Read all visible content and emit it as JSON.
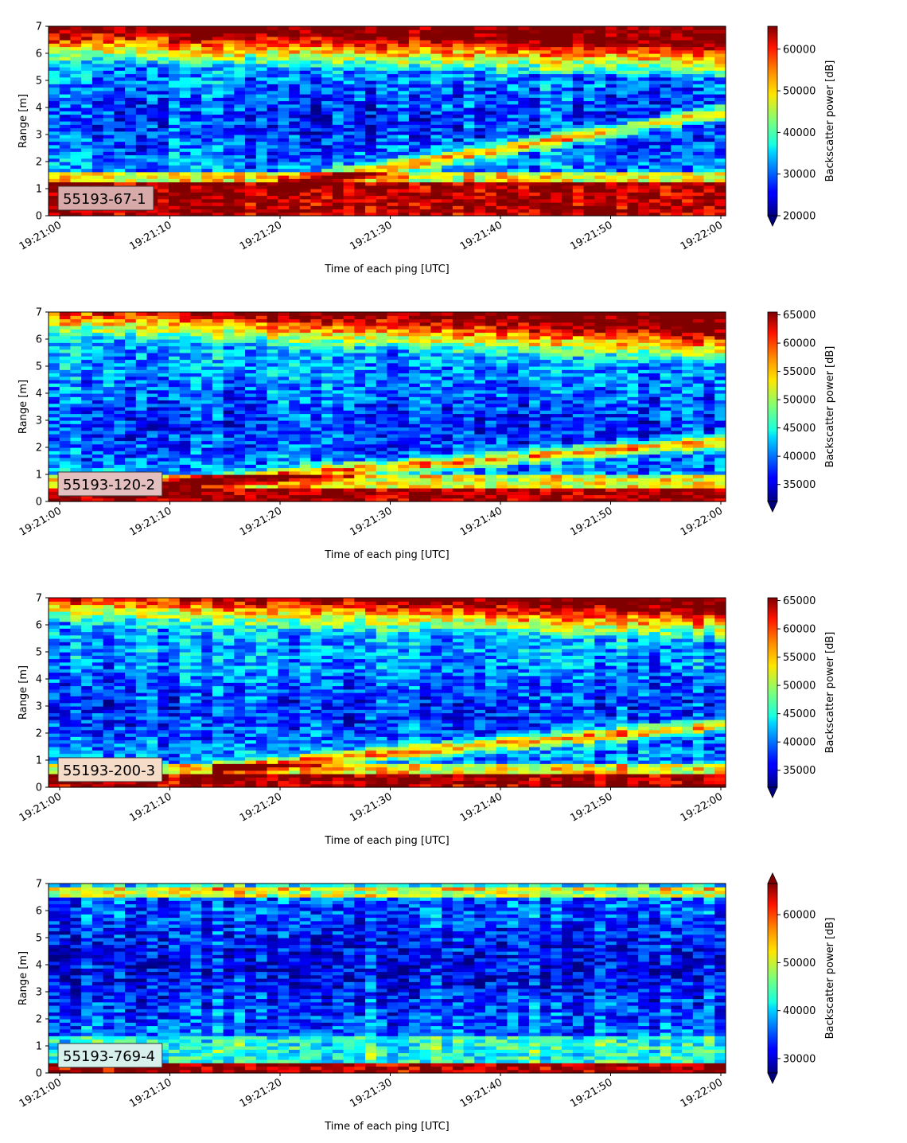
{
  "chart_data": [
    {
      "type": "heatmap",
      "label": "55193-67-1",
      "label_box_color": "#d8a9a9",
      "xlabel": "Time of each ping [UTC]",
      "ylabel": "Range [m]",
      "x_ticks": [
        "19:21:00",
        "19:21:10",
        "19:21:20",
        "19:21:30",
        "19:21:40",
        "19:21:50",
        "19:22:00"
      ],
      "y_ticks": [
        "0",
        "1",
        "2",
        "3",
        "4",
        "5",
        "6",
        "7"
      ],
      "ylim": [
        0,
        7
      ],
      "xlim": [
        "19:21:00",
        "19:22:00"
      ],
      "colorbar": {
        "label": "Backscatter power [dB]",
        "ticks": [
          "20000",
          "30000",
          "40000",
          "50000",
          "60000"
        ],
        "range": [
          20000,
          65500
        ],
        "extend": "min",
        "colormap": "jet"
      },
      "features": {
        "bottom_band_top_m": 1.2,
        "diagonal_echo_start_m": 1.1,
        "diagonal_echo_end_m": 3.8,
        "diagonal_start_s": 20,
        "low_region_center_m": 3.5,
        "surface_band_start_m": 5.6,
        "surface_band_end_m": 5.0
      }
    },
    {
      "type": "heatmap",
      "label": "55193-120-2",
      "label_box_color": "#e3bfbf",
      "xlabel": "Time of each ping [UTC]",
      "ylabel": "Range [m]",
      "x_ticks": [
        "19:21:00",
        "19:21:10",
        "19:21:20",
        "19:21:30",
        "19:21:40",
        "19:21:50",
        "19:22:00"
      ],
      "y_ticks": [
        "0",
        "1",
        "2",
        "3",
        "4",
        "5",
        "6",
        "7"
      ],
      "ylim": [
        0,
        7
      ],
      "xlim": [
        "19:21:00",
        "19:22:00"
      ],
      "colorbar": {
        "label": "Backscatter power [dB]",
        "ticks": [
          "35000",
          "40000",
          "45000",
          "50000",
          "55000",
          "60000",
          "65000"
        ],
        "range": [
          32000,
          65500
        ],
        "extend": "min",
        "colormap": "jet"
      },
      "features": {
        "bottom_band_top_m": 0.5,
        "diagonal_echo_start_m": 0.6,
        "diagonal_echo_end_m": 2.2,
        "diagonal_start_s": 8,
        "low_region_center_m": 2.8,
        "surface_band_start_m": 6.0,
        "surface_band_end_m": 5.0
      }
    },
    {
      "type": "heatmap",
      "label": "55193-200-3",
      "label_box_color": "#f4dcc8",
      "xlabel": "Time of each ping [UTC]",
      "ylabel": "Range [m]",
      "x_ticks": [
        "19:21:00",
        "19:21:10",
        "19:21:20",
        "19:21:30",
        "19:21:40",
        "19:21:50",
        "19:22:00"
      ],
      "y_ticks": [
        "0",
        "1",
        "2",
        "3",
        "4",
        "5",
        "6",
        "7"
      ],
      "ylim": [
        0,
        7
      ],
      "xlim": [
        "19:21:00",
        "19:22:00"
      ],
      "colorbar": {
        "label": "Backscatter power [dB]",
        "ticks": [
          "35000",
          "40000",
          "45000",
          "50000",
          "55000",
          "60000",
          "65000"
        ],
        "range": [
          32000,
          65500
        ],
        "extend": "min",
        "colormap": "jet"
      },
      "features": {
        "bottom_band_top_m": 0.45,
        "diagonal_echo_start_m": 0.7,
        "diagonal_echo_end_m": 2.3,
        "diagonal_start_s": 14,
        "low_region_center_m": 2.8,
        "surface_band_start_m": 6.0,
        "surface_band_end_m": 5.3
      }
    },
    {
      "type": "heatmap",
      "label": "55193-769-4",
      "label_box_color": "#d8f0ec",
      "xlabel": "Time of each ping [UTC]",
      "ylabel": "Range [m]",
      "x_ticks": [
        "19:21:00",
        "19:21:10",
        "19:21:20",
        "19:21:30",
        "19:21:40",
        "19:21:50",
        "19:22:00"
      ],
      "y_ticks": [
        "0",
        "1",
        "2",
        "3",
        "4",
        "5",
        "6",
        "7"
      ],
      "ylim": [
        0,
        7
      ],
      "xlim": [
        "19:21:00",
        "19:22:00"
      ],
      "colorbar": {
        "label": "Backscatter power [dB]",
        "ticks": [
          "30000",
          "40000",
          "50000",
          "60000"
        ],
        "range": [
          27000,
          66500
        ],
        "extend": "both",
        "colormap": "jet"
      },
      "features": {
        "bottom_band_top_m": 0.35,
        "diagonal_echo_start_m": null,
        "diagonal_echo_end_m": null,
        "diagonal_start_s": null,
        "low_region_center_m": 4.0,
        "surface_band_start_m": 6.7,
        "surface_band_end_m": 6.7
      }
    }
  ]
}
